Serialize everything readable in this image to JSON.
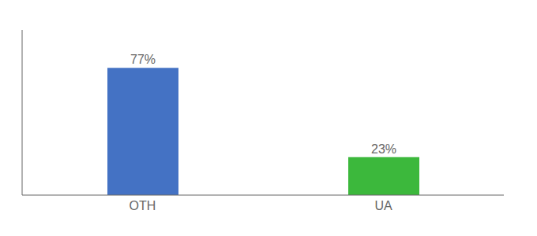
{
  "chart_data": {
    "type": "bar",
    "categories": [
      "OTH",
      "UA"
    ],
    "values": [
      77,
      23
    ],
    "value_labels": [
      "77%",
      "23%"
    ],
    "colors": [
      "#4472c4",
      "#3cb83c"
    ],
    "ylim": [
      0,
      100
    ],
    "data_labels": true,
    "tick_labels": "x",
    "grid": false
  }
}
